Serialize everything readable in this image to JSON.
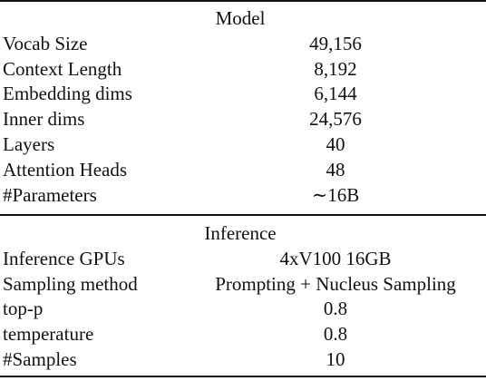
{
  "sections": [
    {
      "title": "Model",
      "rows": [
        [
          "Vocab Size",
          "49,156"
        ],
        [
          "Context Length",
          "8,192"
        ],
        [
          "Embedding dims",
          "6,144"
        ],
        [
          "Inner dims",
          "24,576"
        ],
        [
          "Layers",
          "40"
        ],
        [
          "Attention Heads",
          "48"
        ],
        [
          "#Parameters",
          "∼16B"
        ]
      ]
    },
    {
      "title": "Inference",
      "rows": [
        [
          "Inference GPUs",
          "4xV100 16GB"
        ],
        [
          "Sampling method",
          "Prompting + Nucleus Sampling"
        ],
        [
          "top-p",
          "0.8"
        ],
        [
          "temperature",
          "0.8"
        ],
        [
          "#Samples",
          "10"
        ]
      ]
    }
  ]
}
